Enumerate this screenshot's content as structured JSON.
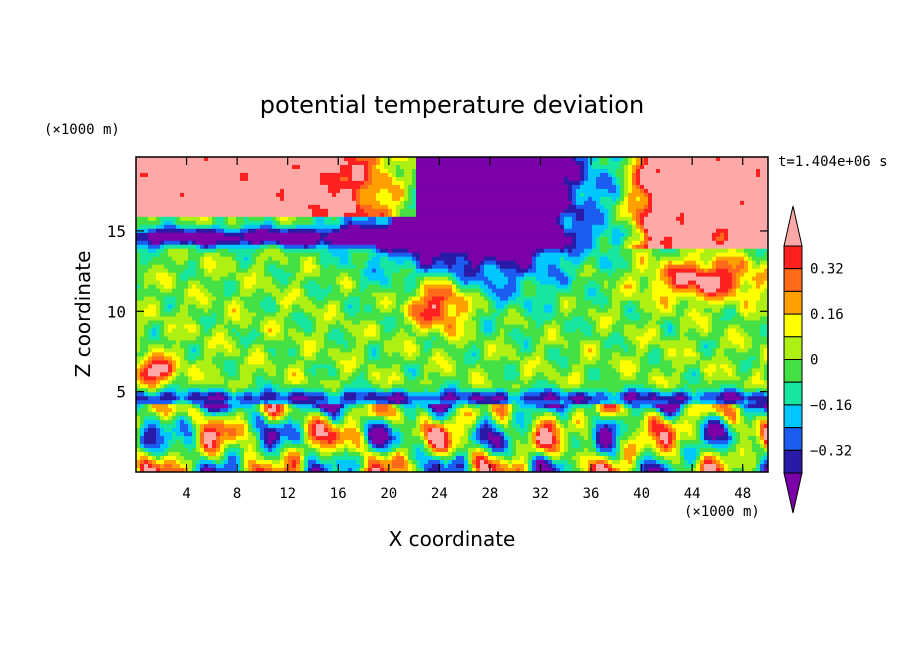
{
  "chart_data": {
    "type": "heatmap",
    "title": "potential temperature deviation",
    "xlabel": "X coordinate",
    "ylabel": "Z coordinate",
    "x_unit": "(×1000 m)",
    "z_unit": "(×1000 m)",
    "time_label": "t=1.404e+06 s",
    "xlim": [
      0,
      50
    ],
    "zlim": [
      0,
      19.6
    ],
    "x_ticks": [
      "4",
      "8",
      "12",
      "16",
      "20",
      "24",
      "28",
      "32",
      "36",
      "40",
      "44",
      "48"
    ],
    "x_tick_values": [
      4,
      8,
      12,
      16,
      20,
      24,
      28,
      32,
      36,
      40,
      44,
      48
    ],
    "z_ticks": [
      "5",
      "10",
      "15"
    ],
    "z_tick_values": [
      5,
      10,
      15
    ],
    "colorbar": {
      "levels": [
        -0.4,
        -0.32,
        -0.24,
        -0.16,
        -0.08,
        0,
        0.08,
        0.16,
        0.24,
        0.32,
        0.4
      ],
      "colors": [
        "#7b00a8",
        "#2a1aa8",
        "#1c5cf0",
        "#00c8ff",
        "#16e6a0",
        "#44e044",
        "#aef014",
        "#ffff00",
        "#ffa000",
        "#ff6a1a",
        "#ff2020",
        "#ffa8a8"
      ],
      "labels": [
        "0.32",
        "0.16",
        "0",
        "−0.16",
        "−0.32"
      ],
      "label_values": [
        0.32,
        0.16,
        0,
        -0.16,
        -0.32
      ]
    }
  }
}
